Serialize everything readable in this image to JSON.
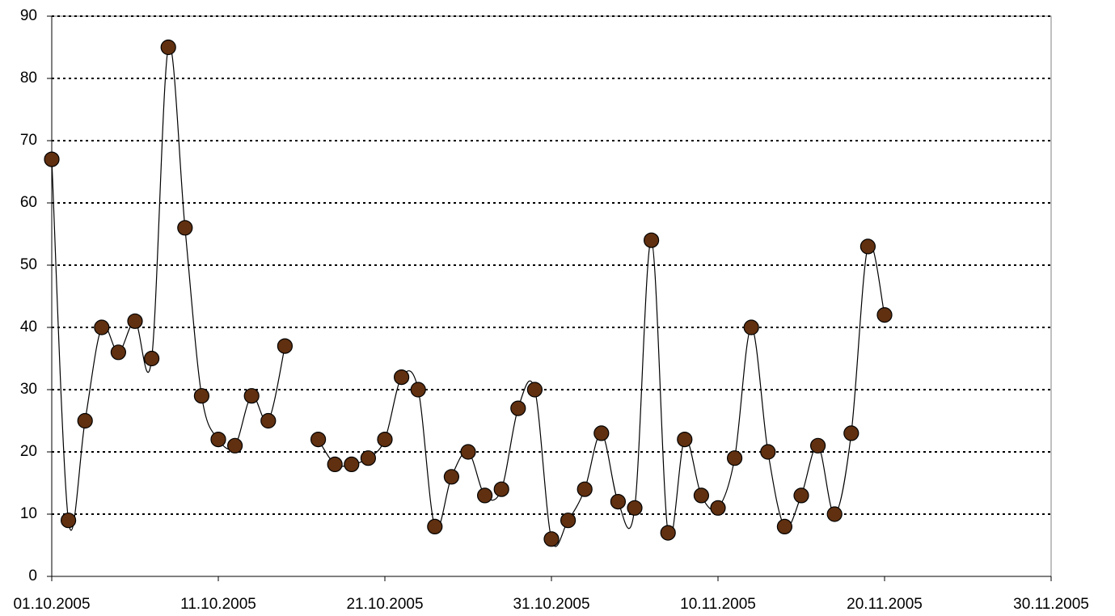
{
  "chart_data": {
    "type": "line",
    "x": [
      "01.10.2005",
      "02.10.2005",
      "03.10.2005",
      "04.10.2005",
      "05.10.2005",
      "06.10.2005",
      "07.10.2005",
      "08.10.2005",
      "09.10.2005",
      "10.10.2005",
      "11.10.2005",
      "12.10.2005",
      "13.10.2005",
      "14.10.2005",
      "15.10.2005",
      "16.10.2005",
      "17.10.2005",
      "18.10.2005",
      "19.10.2005",
      "20.10.2005",
      "21.10.2005",
      "22.10.2005",
      "23.10.2005",
      "24.10.2005",
      "25.10.2005",
      "26.10.2005",
      "27.10.2005",
      "28.10.2005",
      "29.10.2005",
      "30.10.2005",
      "31.10.2005",
      "01.11.2005",
      "02.11.2005",
      "03.11.2005",
      "04.11.2005",
      "05.11.2005",
      "06.11.2005",
      "07.11.2005",
      "08.11.2005",
      "09.11.2005",
      "10.11.2005",
      "11.11.2005",
      "12.11.2005",
      "13.11.2005",
      "14.11.2005",
      "15.11.2005",
      "16.11.2005",
      "17.11.2005",
      "18.11.2005",
      "19.11.2005",
      "20.11.2005"
    ],
    "series": [
      {
        "color": "#603010",
        "values": [
          67,
          9,
          25,
          40,
          36,
          41,
          35,
          85,
          56,
          29,
          22,
          21,
          29,
          25,
          37,
          null,
          22,
          18,
          18,
          19,
          22,
          32,
          30,
          8,
          16,
          20,
          13,
          14,
          27,
          30,
          6,
          9,
          14,
          23,
          12,
          11,
          54,
          7,
          22,
          13,
          11,
          19,
          40,
          20,
          8,
          13,
          21,
          10,
          23,
          53,
          42
        ]
      }
    ],
    "xlim": [
      "01.10.2005",
      "30.11.2005"
    ],
    "xticks": [
      "01.10.2005",
      "11.10.2005",
      "21.10.2005",
      "31.10.2005",
      "10.11.2005",
      "20.11.2005",
      "30.11.2005"
    ],
    "ylim": [
      0,
      90
    ],
    "yticks": [
      0,
      10,
      20,
      30,
      40,
      50,
      60,
      70,
      80,
      90
    ],
    "grid": true,
    "smooth": true
  }
}
